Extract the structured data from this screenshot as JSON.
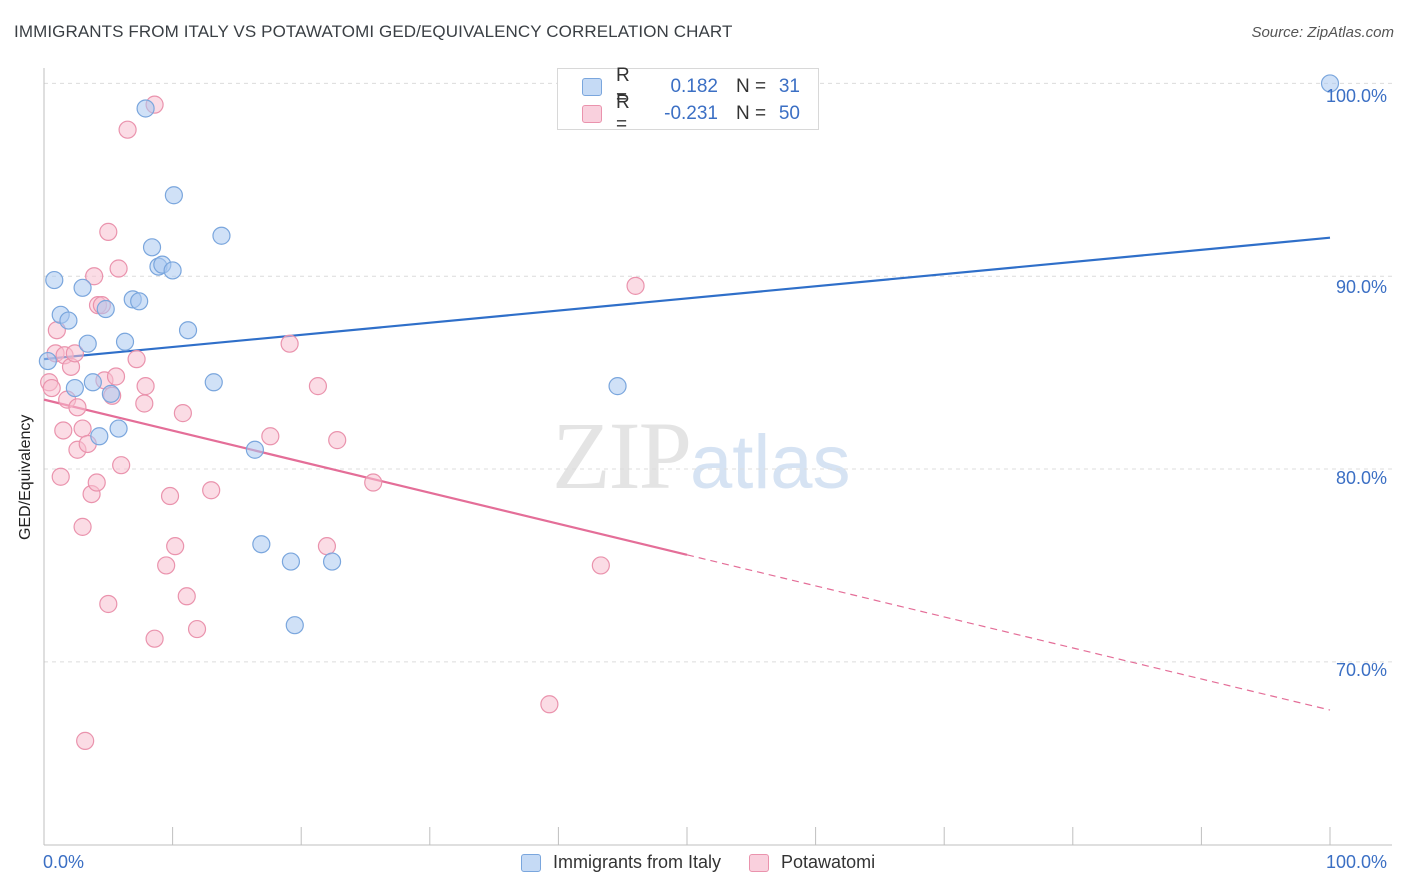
{
  "title": "IMMIGRANTS FROM ITALY VS POTAWATOMI GED/EQUIVALENCY CORRELATION CHART",
  "source": "Source: ZipAtlas.com",
  "watermark": {
    "zip": "ZIP",
    "atlas": "atlas"
  },
  "legend_top": {
    "rows": [
      {
        "r_label": "R =",
        "r_value": "0.182",
        "n_label": "N =",
        "n_value": "31"
      },
      {
        "r_label": "R =",
        "r_value": "-0.231",
        "n_label": "N =",
        "n_value": "50"
      }
    ]
  },
  "colors": {
    "italy_fill": "#a9c8f0",
    "italy_stroke": "#7aa6dd",
    "italy_line": "#2f6fc9",
    "pota_fill": "#f7bfd0",
    "pota_stroke": "#ea93ad",
    "pota_line": "#e46e98",
    "grid": "#dcdcdc",
    "axis_label": "#3b6fc4"
  },
  "chart_data": {
    "type": "scatter",
    "title": "IMMIGRANTS FROM ITALY VS POTAWATOMI GED/EQUIVALENCY CORRELATION CHART",
    "xlabel": "",
    "ylabel": "GED/Equivalency",
    "xlim": [
      0,
      100
    ],
    "ylim": [
      60.5,
      100.8
    ],
    "x_tick_labels": [
      "0.0%",
      "100.0%"
    ],
    "y_ticks": [
      70,
      80,
      90,
      100
    ],
    "y_tick_labels": [
      "70.0%",
      "80.0%",
      "90.0%",
      "100.0%"
    ],
    "grid": true,
    "legend_position": "bottom",
    "series": [
      {
        "name": "Immigrants from Italy",
        "points": [
          [
            0.3,
            85.6
          ],
          [
            0.8,
            89.8
          ],
          [
            1.3,
            88.0
          ],
          [
            1.9,
            87.7
          ],
          [
            2.4,
            84.2
          ],
          [
            3.0,
            89.4
          ],
          [
            3.4,
            86.5
          ],
          [
            3.8,
            84.5
          ],
          [
            4.3,
            81.7
          ],
          [
            4.8,
            88.3
          ],
          [
            5.2,
            83.9
          ],
          [
            5.8,
            82.1
          ],
          [
            6.3,
            86.6
          ],
          [
            6.9,
            88.8
          ],
          [
            7.4,
            88.7
          ],
          [
            7.9,
            98.7
          ],
          [
            8.4,
            91.5
          ],
          [
            8.9,
            90.5
          ],
          [
            9.2,
            90.6
          ],
          [
            10.0,
            90.3
          ],
          [
            10.1,
            94.2
          ],
          [
            11.2,
            87.2
          ],
          [
            13.2,
            84.5
          ],
          [
            13.8,
            92.1
          ],
          [
            16.4,
            81.0
          ],
          [
            16.9,
            76.1
          ],
          [
            19.2,
            75.2
          ],
          [
            19.5,
            71.9
          ],
          [
            22.4,
            75.2
          ],
          [
            44.6,
            84.3
          ],
          [
            100.0,
            100.0
          ]
        ],
        "trend": {
          "x": [
            0,
            100
          ],
          "y": [
            85.7,
            92.0
          ],
          "style": "solid"
        }
      },
      {
        "name": "Potawatomi",
        "points": [
          [
            0.4,
            84.5
          ],
          [
            0.6,
            84.2
          ],
          [
            0.9,
            86.0
          ],
          [
            1.0,
            87.2
          ],
          [
            1.3,
            79.6
          ],
          [
            1.5,
            82.0
          ],
          [
            1.6,
            85.9
          ],
          [
            1.8,
            83.6
          ],
          [
            2.1,
            85.3
          ],
          [
            2.4,
            86.0
          ],
          [
            2.6,
            83.2
          ],
          [
            2.6,
            81.0
          ],
          [
            3.0,
            82.1
          ],
          [
            3.0,
            77.0
          ],
          [
            3.2,
            65.9
          ],
          [
            3.4,
            81.3
          ],
          [
            3.7,
            78.7
          ],
          [
            3.9,
            90.0
          ],
          [
            4.1,
            79.3
          ],
          [
            4.2,
            88.5
          ],
          [
            4.5,
            88.5
          ],
          [
            4.7,
            84.6
          ],
          [
            5.0,
            92.3
          ],
          [
            5.0,
            73.0
          ],
          [
            5.3,
            83.8
          ],
          [
            5.6,
            84.8
          ],
          [
            5.8,
            90.4
          ],
          [
            6.0,
            80.2
          ],
          [
            6.5,
            97.6
          ],
          [
            7.2,
            85.7
          ],
          [
            7.8,
            83.4
          ],
          [
            7.9,
            84.3
          ],
          [
            8.6,
            98.9
          ],
          [
            8.6,
            71.2
          ],
          [
            9.5,
            75.0
          ],
          [
            9.8,
            78.6
          ],
          [
            10.2,
            76.0
          ],
          [
            10.8,
            82.9
          ],
          [
            11.1,
            73.4
          ],
          [
            11.9,
            71.7
          ],
          [
            13.0,
            78.9
          ],
          [
            17.6,
            81.7
          ],
          [
            19.1,
            86.5
          ],
          [
            21.3,
            84.3
          ],
          [
            22.0,
            76.0
          ],
          [
            22.8,
            81.5
          ],
          [
            25.6,
            79.3
          ],
          [
            39.3,
            67.8
          ],
          [
            46.0,
            89.5
          ],
          [
            43.3,
            75.0
          ]
        ],
        "trend": {
          "x": [
            0,
            100
          ],
          "y": [
            83.6,
            67.5
          ],
          "solid_until_x": 50
        }
      }
    ]
  }
}
